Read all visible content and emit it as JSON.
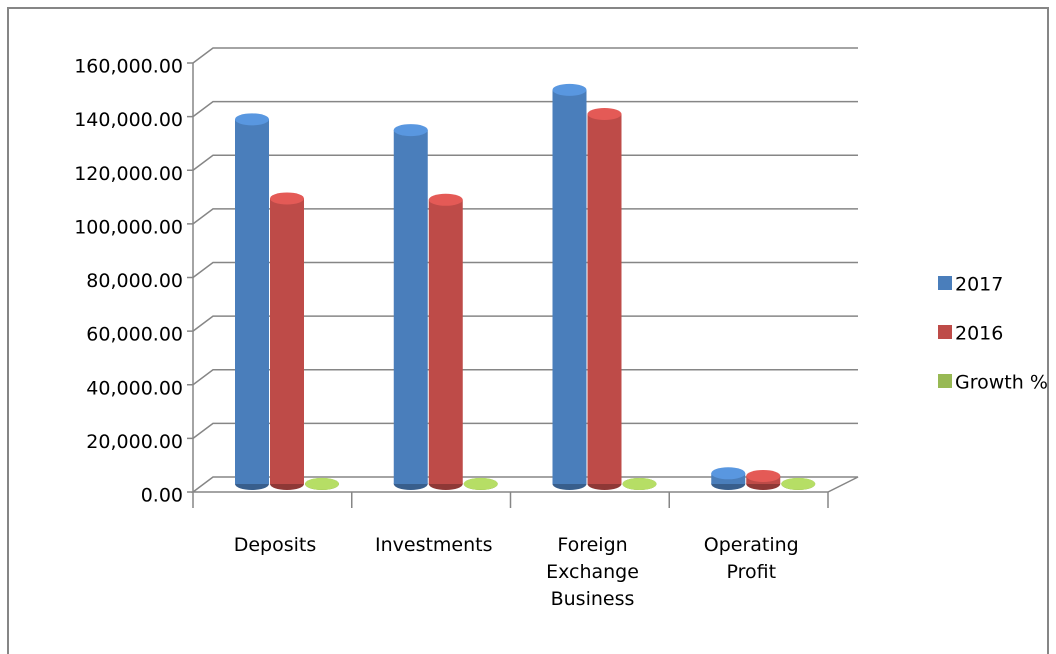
{
  "chart_data": {
    "type": "bar3d",
    "categories": [
      "Deposits",
      "Investments",
      "Foreign Exchange Business",
      "Operating Profit"
    ],
    "series": [
      {
        "name": "2017",
        "color": "#4a7ebb",
        "values": [
          136000,
          132000,
          147000,
          4000
        ]
      },
      {
        "name": "2016",
        "color": "#be4b48",
        "values": [
          106500,
          106000,
          138000,
          3000
        ]
      },
      {
        "name": "Growth %",
        "color": "#98b954",
        "values": [
          25,
          24,
          8,
          30
        ]
      }
    ],
    "ylim": [
      0,
      160000
    ],
    "yticks": [
      {
        "value": 0,
        "label": "0.00"
      },
      {
        "value": 20000,
        "label": "20,000.00"
      },
      {
        "value": 40000,
        "label": "40,000.00"
      },
      {
        "value": 60000,
        "label": "60,000.00"
      },
      {
        "value": 80000,
        "label": "80,000.00"
      },
      {
        "value": 100000,
        "label": "100,000.00"
      },
      {
        "value": 120000,
        "label": "120,000.00"
      },
      {
        "value": 140000,
        "label": "140,000.00"
      },
      {
        "value": 160000,
        "label": "160,000.00"
      }
    ],
    "grid": true,
    "legend": "right"
  }
}
